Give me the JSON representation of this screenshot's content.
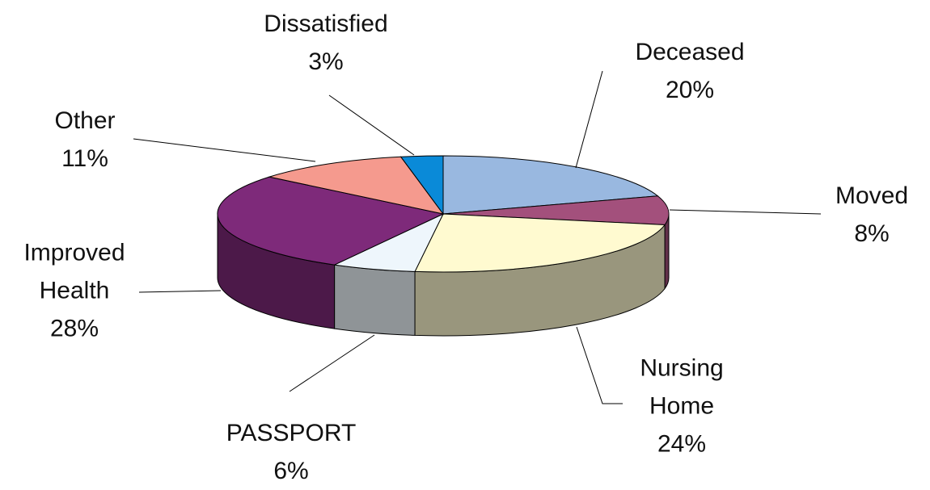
{
  "chart_data": {
    "type": "pie3d",
    "categories": [
      "Deceased",
      "Moved",
      "Nursing Home",
      "PASSPORT",
      "Improved Health",
      "Other",
      "Dissatisfied"
    ],
    "values": [
      20,
      8,
      24,
      6,
      28,
      11,
      3
    ],
    "value_labels": [
      "20%",
      "8%",
      "24%",
      "6%",
      "28%",
      "11%",
      "3%"
    ],
    "colors": [
      "#99b8e0",
      "#a3507c",
      "#fffad0",
      "#eef6fc",
      "#7e2a7a",
      "#f59a8e",
      "#0a8ad8"
    ]
  }
}
